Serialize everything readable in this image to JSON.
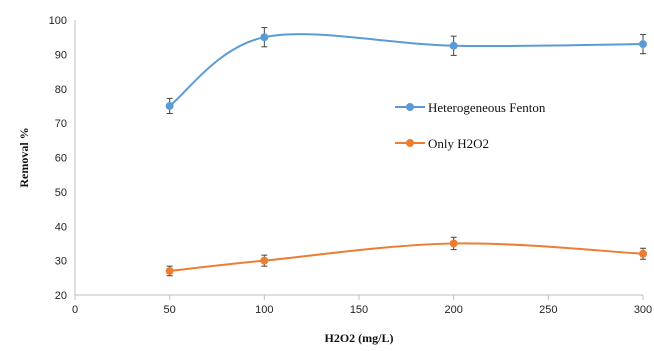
{
  "chart_data": {
    "type": "line",
    "title": "",
    "xlabel": "H2O2 (mg/L)",
    "ylabel": "Removal %",
    "xlim": [
      0,
      300
    ],
    "ylim": [
      20,
      100
    ],
    "x_ticks": [
      0,
      50,
      100,
      150,
      200,
      250,
      300
    ],
    "y_ticks": [
      20,
      30,
      40,
      50,
      60,
      70,
      80,
      90,
      100
    ],
    "grid": false,
    "legend_position": "right",
    "smooth": true,
    "series": [
      {
        "name": "Heterogeneous Fenton",
        "color": "#5b9bd5",
        "x": [
          50,
          100,
          200,
          300
        ],
        "y": [
          75,
          95,
          92.5,
          93
        ],
        "error": [
          2.2,
          2.8,
          2.8,
          2.8
        ]
      },
      {
        "name": "Only H2O2",
        "color": "#ed7d31",
        "x": [
          50,
          100,
          200,
          300
        ],
        "y": [
          27,
          30,
          35,
          32
        ],
        "error": [
          1.4,
          1.6,
          1.8,
          1.6
        ]
      }
    ]
  }
}
